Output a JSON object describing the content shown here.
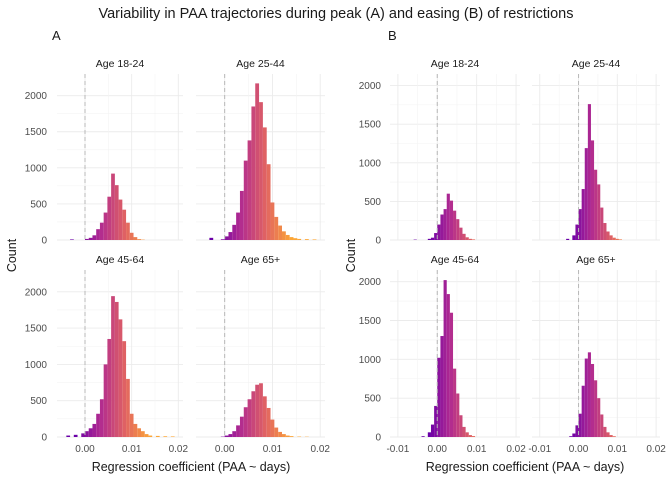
{
  "title": "Variability in PAA trajectories during peak (A) and easing (B) of restrictions",
  "chart_data": {
    "type": "bar",
    "title": "Variability in PAA trajectories during peak (A) and easing (B) of restrictions",
    "xlabel": "Regression coefficient (PAA ~ days)",
    "ylabel": "Count",
    "grid": true,
    "reference_line": {
      "x": 0,
      "style": "dashed"
    },
    "color_gradient": [
      "#6a00a8",
      "#b12a90",
      "#e16462",
      "#fca636"
    ],
    "panels": [
      {
        "label": "A",
        "xlim": [
          -0.006,
          0.021
        ],
        "ylim": [
          0,
          2300
        ],
        "xticks": [
          "0.00",
          "0.01",
          "0.02"
        ],
        "xtick_values": [
          0,
          0.01,
          0.02
        ],
        "yticks": [
          "0",
          "500",
          "1000",
          "1500",
          "2000"
        ],
        "ytick_values": [
          0,
          500,
          1000,
          1500,
          2000
        ],
        "bin_width": 0.0008,
        "facets": [
          {
            "title": "Age 18-24",
            "bins": [
              {
                "x": -0.0032,
                "y": 8
              },
              {
                "x": 0.0,
                "y": 15
              },
              {
                "x": 0.0008,
                "y": 30
              },
              {
                "x": 0.0016,
                "y": 65
              },
              {
                "x": 0.0024,
                "y": 150
              },
              {
                "x": 0.0032,
                "y": 240
              },
              {
                "x": 0.004,
                "y": 380
              },
              {
                "x": 0.0048,
                "y": 600
              },
              {
                "x": 0.0056,
                "y": 920
              },
              {
                "x": 0.0064,
                "y": 760
              },
              {
                "x": 0.0072,
                "y": 560
              },
              {
                "x": 0.008,
                "y": 420
              },
              {
                "x": 0.0088,
                "y": 240
              },
              {
                "x": 0.0096,
                "y": 100
              },
              {
                "x": 0.0104,
                "y": 40
              },
              {
                "x": 0.0112,
                "y": 12
              },
              {
                "x": 0.012,
                "y": 5
              }
            ]
          },
          {
            "title": "Age 25-44",
            "bins": [
              {
                "x": -0.0032,
                "y": 30
              },
              {
                "x": -0.0008,
                "y": 10
              },
              {
                "x": 0.0,
                "y": 50
              },
              {
                "x": 0.0008,
                "y": 110
              },
              {
                "x": 0.0016,
                "y": 210
              },
              {
                "x": 0.0024,
                "y": 380
              },
              {
                "x": 0.0032,
                "y": 680
              },
              {
                "x": 0.004,
                "y": 1100
              },
              {
                "x": 0.0048,
                "y": 1380
              },
              {
                "x": 0.0056,
                "y": 1850
              },
              {
                "x": 0.0064,
                "y": 2170
              },
              {
                "x": 0.0072,
                "y": 1910
              },
              {
                "x": 0.008,
                "y": 1560
              },
              {
                "x": 0.0088,
                "y": 1050
              },
              {
                "x": 0.0096,
                "y": 520
              },
              {
                "x": 0.0104,
                "y": 320
              },
              {
                "x": 0.0112,
                "y": 200
              },
              {
                "x": 0.012,
                "y": 120
              },
              {
                "x": 0.0128,
                "y": 70
              },
              {
                "x": 0.0136,
                "y": 40
              },
              {
                "x": 0.0144,
                "y": 25
              },
              {
                "x": 0.0152,
                "y": 15
              },
              {
                "x": 0.0168,
                "y": 12
              },
              {
                "x": 0.0184,
                "y": 8
              }
            ]
          },
          {
            "title": "Age 45-64",
            "bins": [
              {
                "x": -0.004,
                "y": 20
              },
              {
                "x": -0.0024,
                "y": 30
              },
              {
                "x": -0.0008,
                "y": 50
              },
              {
                "x": 0.0,
                "y": 80
              },
              {
                "x": 0.0008,
                "y": 120
              },
              {
                "x": 0.0016,
                "y": 180
              },
              {
                "x": 0.0024,
                "y": 320
              },
              {
                "x": 0.0032,
                "y": 520
              },
              {
                "x": 0.004,
                "y": 1000
              },
              {
                "x": 0.0048,
                "y": 1350
              },
              {
                "x": 0.0056,
                "y": 1940
              },
              {
                "x": 0.0064,
                "y": 1860
              },
              {
                "x": 0.0072,
                "y": 1620
              },
              {
                "x": 0.008,
                "y": 1320
              },
              {
                "x": 0.0088,
                "y": 800
              },
              {
                "x": 0.0096,
                "y": 320
              },
              {
                "x": 0.0104,
                "y": 180
              },
              {
                "x": 0.0112,
                "y": 120
              },
              {
                "x": 0.012,
                "y": 80
              },
              {
                "x": 0.0128,
                "y": 40
              },
              {
                "x": 0.0136,
                "y": 20
              },
              {
                "x": 0.0152,
                "y": 15
              },
              {
                "x": 0.0168,
                "y": 10
              },
              {
                "x": 0.0184,
                "y": 8
              }
            ]
          },
          {
            "title": "Age 65+",
            "bins": [
              {
                "x": -0.0008,
                "y": 5
              },
              {
                "x": 0.0,
                "y": 20
              },
              {
                "x": 0.0008,
                "y": 40
              },
              {
                "x": 0.0016,
                "y": 80
              },
              {
                "x": 0.0024,
                "y": 160
              },
              {
                "x": 0.0032,
                "y": 280
              },
              {
                "x": 0.004,
                "y": 410
              },
              {
                "x": 0.0048,
                "y": 520
              },
              {
                "x": 0.0056,
                "y": 630
              },
              {
                "x": 0.0064,
                "y": 720
              },
              {
                "x": 0.0072,
                "y": 740
              },
              {
                "x": 0.008,
                "y": 560
              },
              {
                "x": 0.0088,
                "y": 400
              },
              {
                "x": 0.0096,
                "y": 240
              },
              {
                "x": 0.0104,
                "y": 130
              },
              {
                "x": 0.0112,
                "y": 70
              },
              {
                "x": 0.012,
                "y": 40
              },
              {
                "x": 0.0128,
                "y": 20
              },
              {
                "x": 0.0136,
                "y": 12
              },
              {
                "x": 0.0152,
                "y": 6
              },
              {
                "x": 0.0168,
                "y": 4
              }
            ]
          }
        ]
      },
      {
        "label": "B",
        "xlim": [
          -0.012,
          0.021
        ],
        "ylim": [
          0,
          2150
        ],
        "xticks": [
          "-0.01",
          "0.00",
          "0.01",
          "0.02"
        ],
        "xtick_values": [
          -0.01,
          0,
          0.01,
          0.02
        ],
        "yticks": [
          "0",
          "500",
          "1000",
          "1500",
          "2000"
        ],
        "ytick_values": [
          0,
          500,
          1000,
          1500,
          2000
        ],
        "bin_width": 0.0008,
        "facets": [
          {
            "title": "Age 18-24",
            "bins": [
              {
                "x": -0.006,
                "y": 5
              },
              {
                "x": -0.0024,
                "y": 15
              },
              {
                "x": -0.0016,
                "y": 30
              },
              {
                "x": -0.0008,
                "y": 90
              },
              {
                "x": 0.0,
                "y": 200
              },
              {
                "x": 0.0008,
                "y": 330
              },
              {
                "x": 0.0016,
                "y": 400
              },
              {
                "x": 0.0024,
                "y": 600
              },
              {
                "x": 0.0032,
                "y": 510
              },
              {
                "x": 0.004,
                "y": 380
              },
              {
                "x": 0.0048,
                "y": 270
              },
              {
                "x": 0.0056,
                "y": 160
              },
              {
                "x": 0.0064,
                "y": 80
              },
              {
                "x": 0.0072,
                "y": 35
              },
              {
                "x": 0.008,
                "y": 15
              },
              {
                "x": 0.0088,
                "y": 8
              }
            ]
          },
          {
            "title": "Age 25-44",
            "bins": [
              {
                "x": -0.0032,
                "y": 15
              },
              {
                "x": -0.0016,
                "y": 60
              },
              {
                "x": -0.0008,
                "y": 200
              },
              {
                "x": 0.0,
                "y": 400
              },
              {
                "x": 0.0008,
                "y": 660
              },
              {
                "x": 0.0016,
                "y": 1190
              },
              {
                "x": 0.0024,
                "y": 1760
              },
              {
                "x": 0.0032,
                "y": 1290
              },
              {
                "x": 0.004,
                "y": 910
              },
              {
                "x": 0.0048,
                "y": 720
              },
              {
                "x": 0.0056,
                "y": 420
              },
              {
                "x": 0.0064,
                "y": 220
              },
              {
                "x": 0.0072,
                "y": 110
              },
              {
                "x": 0.008,
                "y": 60
              },
              {
                "x": 0.0088,
                "y": 30
              },
              {
                "x": 0.0096,
                "y": 15
              },
              {
                "x": 0.0104,
                "y": 8
              }
            ]
          },
          {
            "title": "Age 45-64",
            "bins": [
              {
                "x": -0.004,
                "y": 10
              },
              {
                "x": -0.0024,
                "y": 60
              },
              {
                "x": -0.0016,
                "y": 160
              },
              {
                "x": -0.0008,
                "y": 400
              },
              {
                "x": 0.0,
                "y": 1020
              },
              {
                "x": 0.0008,
                "y": 1300
              },
              {
                "x": 0.0016,
                "y": 2020
              },
              {
                "x": 0.0024,
                "y": 1840
              },
              {
                "x": 0.0032,
                "y": 1600
              },
              {
                "x": 0.004,
                "y": 880
              },
              {
                "x": 0.0048,
                "y": 560
              },
              {
                "x": 0.0056,
                "y": 280
              },
              {
                "x": 0.0064,
                "y": 130
              },
              {
                "x": 0.0072,
                "y": 60
              },
              {
                "x": 0.008,
                "y": 25
              },
              {
                "x": 0.0088,
                "y": 12
              }
            ]
          },
          {
            "title": "Age 65+",
            "bins": [
              {
                "x": -0.0024,
                "y": 10
              },
              {
                "x": -0.0016,
                "y": 45
              },
              {
                "x": -0.0008,
                "y": 150
              },
              {
                "x": 0.0,
                "y": 300
              },
              {
                "x": 0.0008,
                "y": 660
              },
              {
                "x": 0.0016,
                "y": 1010
              },
              {
                "x": 0.0024,
                "y": 1090
              },
              {
                "x": 0.0032,
                "y": 940
              },
              {
                "x": 0.004,
                "y": 730
              },
              {
                "x": 0.0048,
                "y": 500
              },
              {
                "x": 0.0056,
                "y": 290
              },
              {
                "x": 0.0064,
                "y": 130
              },
              {
                "x": 0.0072,
                "y": 60
              },
              {
                "x": 0.008,
                "y": 25
              },
              {
                "x": 0.0088,
                "y": 10
              }
            ]
          }
        ]
      }
    ]
  }
}
